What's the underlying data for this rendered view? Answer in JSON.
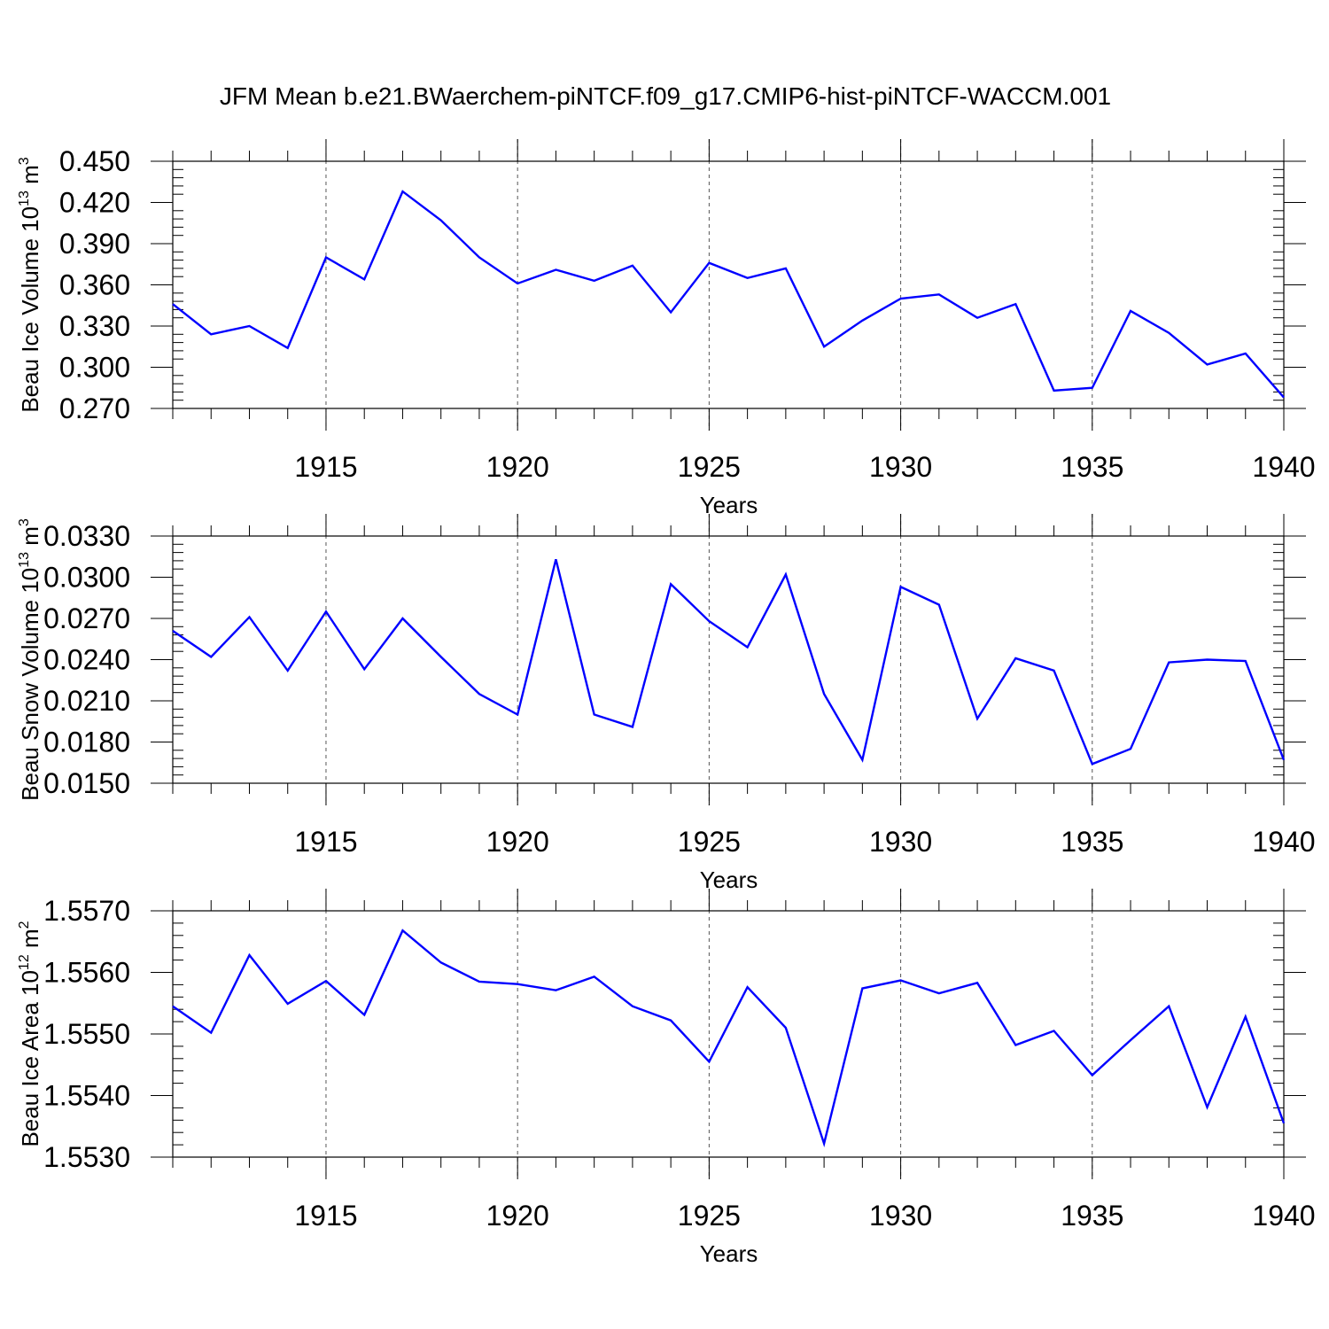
{
  "title": "JFM Mean b.e21.BWaerchem-piNTCF.f09_g17.CMIP6-hist-piNTCF-WACCM.001",
  "colors": {
    "line": "#0000ff",
    "axis": "#000000",
    "grid": "#555555"
  },
  "chart_data": [
    {
      "type": "line",
      "ylabel_main": "Beau Ice Volume 10",
      "ylabel_exp": "13",
      "ylabel_unit": "m",
      "ylabel_unit_exp": "3",
      "xlabel": "Years",
      "xlim": [
        1911,
        1940
      ],
      "ylim": [
        0.27,
        0.45
      ],
      "yticks": [
        0.27,
        0.3,
        0.33,
        0.36,
        0.39,
        0.42,
        0.45
      ],
      "ytick_labels": [
        "0.270",
        "0.300",
        "0.330",
        "0.360",
        "0.390",
        "0.420",
        "0.450"
      ],
      "xticks": [
        1915,
        1920,
        1925,
        1930,
        1935,
        1940
      ],
      "xtick_labels": [
        "1915",
        "1920",
        "1925",
        "1930",
        "1935",
        "1940"
      ],
      "grid_x": true,
      "x": [
        1911,
        1912,
        1913,
        1914,
        1915,
        1916,
        1917,
        1918,
        1919,
        1920,
        1921,
        1922,
        1923,
        1924,
        1925,
        1926,
        1927,
        1928,
        1929,
        1930,
        1931,
        1932,
        1933,
        1934,
        1935,
        1936,
        1937,
        1938,
        1939,
        1940
      ],
      "values": [
        0.346,
        0.324,
        0.33,
        0.314,
        0.38,
        0.364,
        0.428,
        0.407,
        0.38,
        0.361,
        0.371,
        0.363,
        0.374,
        0.34,
        0.376,
        0.365,
        0.372,
        0.315,
        0.334,
        0.35,
        0.353,
        0.336,
        0.346,
        0.283,
        0.285,
        0.341,
        0.325,
        0.302,
        0.31,
        0.278
      ]
    },
    {
      "type": "line",
      "ylabel_main": "Beau Snow Volume 10",
      "ylabel_exp": "13",
      "ylabel_unit": "m",
      "ylabel_unit_exp": "3",
      "xlabel": "Years",
      "xlim": [
        1911,
        1940
      ],
      "ylim": [
        0.015,
        0.033
      ],
      "yticks": [
        0.015,
        0.018,
        0.021,
        0.024,
        0.027,
        0.03,
        0.033
      ],
      "ytick_labels": [
        "0.0150",
        "0.0180",
        "0.0210",
        "0.0240",
        "0.0270",
        "0.0300",
        "0.0330"
      ],
      "xticks": [
        1915,
        1920,
        1925,
        1930,
        1935,
        1940
      ],
      "xtick_labels": [
        "1915",
        "1920",
        "1925",
        "1930",
        "1935",
        "1940"
      ],
      "grid_x": true,
      "x": [
        1911,
        1912,
        1913,
        1914,
        1915,
        1916,
        1917,
        1918,
        1919,
        1920,
        1921,
        1922,
        1923,
        1924,
        1925,
        1926,
        1927,
        1928,
        1929,
        1930,
        1931,
        1932,
        1933,
        1934,
        1935,
        1936,
        1937,
        1938,
        1939,
        1940
      ],
      "values": [
        0.0261,
        0.0242,
        0.0271,
        0.0232,
        0.0275,
        0.0233,
        0.027,
        0.0242,
        0.0215,
        0.02,
        0.0313,
        0.02,
        0.0191,
        0.0295,
        0.0268,
        0.0249,
        0.0302,
        0.0215,
        0.0167,
        0.0293,
        0.028,
        0.0197,
        0.0241,
        0.0232,
        0.0164,
        0.0175,
        0.0238,
        0.024,
        0.0239,
        0.0167
      ]
    },
    {
      "type": "line",
      "ylabel_main": "Beau Ice Area 10",
      "ylabel_exp": "12",
      "ylabel_unit": "m",
      "ylabel_unit_exp": "2",
      "xlabel": "Years",
      "xlim": [
        1911,
        1940
      ],
      "ylim": [
        1.553,
        1.557
      ],
      "yticks": [
        1.553,
        1.554,
        1.555,
        1.556,
        1.557
      ],
      "ytick_labels": [
        "1.5530",
        "1.5540",
        "1.5550",
        "1.5560",
        "1.5570"
      ],
      "xticks": [
        1915,
        1920,
        1925,
        1930,
        1935,
        1940
      ],
      "xtick_labels": [
        "1915",
        "1920",
        "1925",
        "1930",
        "1935",
        "1940"
      ],
      "grid_x": true,
      "x": [
        1911,
        1912,
        1913,
        1914,
        1915,
        1916,
        1917,
        1918,
        1919,
        1920,
        1921,
        1922,
        1923,
        1924,
        1925,
        1926,
        1927,
        1928,
        1929,
        1930,
        1931,
        1932,
        1933,
        1934,
        1935,
        1936,
        1937,
        1938,
        1939,
        1940
      ],
      "values": [
        1.55545,
        1.55502,
        1.55628,
        1.55549,
        1.55586,
        1.55531,
        1.55668,
        1.55616,
        1.55585,
        1.55581,
        1.55571,
        1.55593,
        1.55545,
        1.55522,
        1.55455,
        1.55576,
        1.5551,
        1.55322,
        1.55574,
        1.55587,
        1.55566,
        1.55583,
        1.55482,
        1.55505,
        1.55433,
        1.5549,
        1.55545,
        1.55381,
        1.55528,
        1.55355
      ]
    }
  ]
}
